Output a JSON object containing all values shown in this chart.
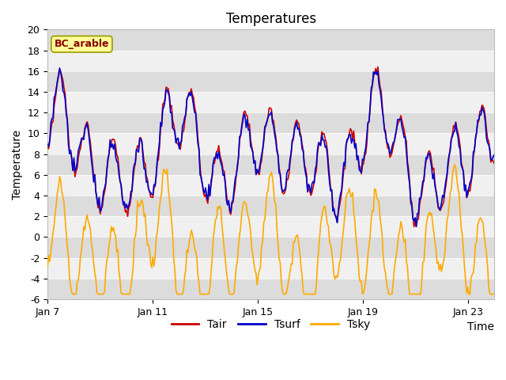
{
  "title": "Temperatures",
  "xlabel": "Time",
  "ylabel": "Temperature",
  "location_label": "BC_arable",
  "ylim": [
    -6,
    20
  ],
  "yticks": [
    -6,
    -4,
    -2,
    0,
    2,
    4,
    6,
    8,
    10,
    12,
    14,
    16,
    18,
    20
  ],
  "xtick_positions": [
    0,
    4,
    8,
    12,
    16
  ],
  "xtick_labels": [
    "Jan 7",
    "Jan 11",
    "Jan 15",
    "Jan 19",
    "Jan 23"
  ],
  "xlim": [
    0,
    17
  ],
  "line_colors": {
    "Tair": "#cc0000",
    "Tsurf": "#0000cc",
    "Tsky": "#ffaa00"
  },
  "band_dark": "#dcdcdc",
  "band_light": "#f0f0f0",
  "location_label_bg": "#ffff99",
  "location_label_border": "#999900",
  "location_label_text": "#880000",
  "title_fontsize": 12,
  "axis_fontsize": 10,
  "tick_fontsize": 9,
  "legend_fontsize": 10,
  "line_width": 1.2
}
